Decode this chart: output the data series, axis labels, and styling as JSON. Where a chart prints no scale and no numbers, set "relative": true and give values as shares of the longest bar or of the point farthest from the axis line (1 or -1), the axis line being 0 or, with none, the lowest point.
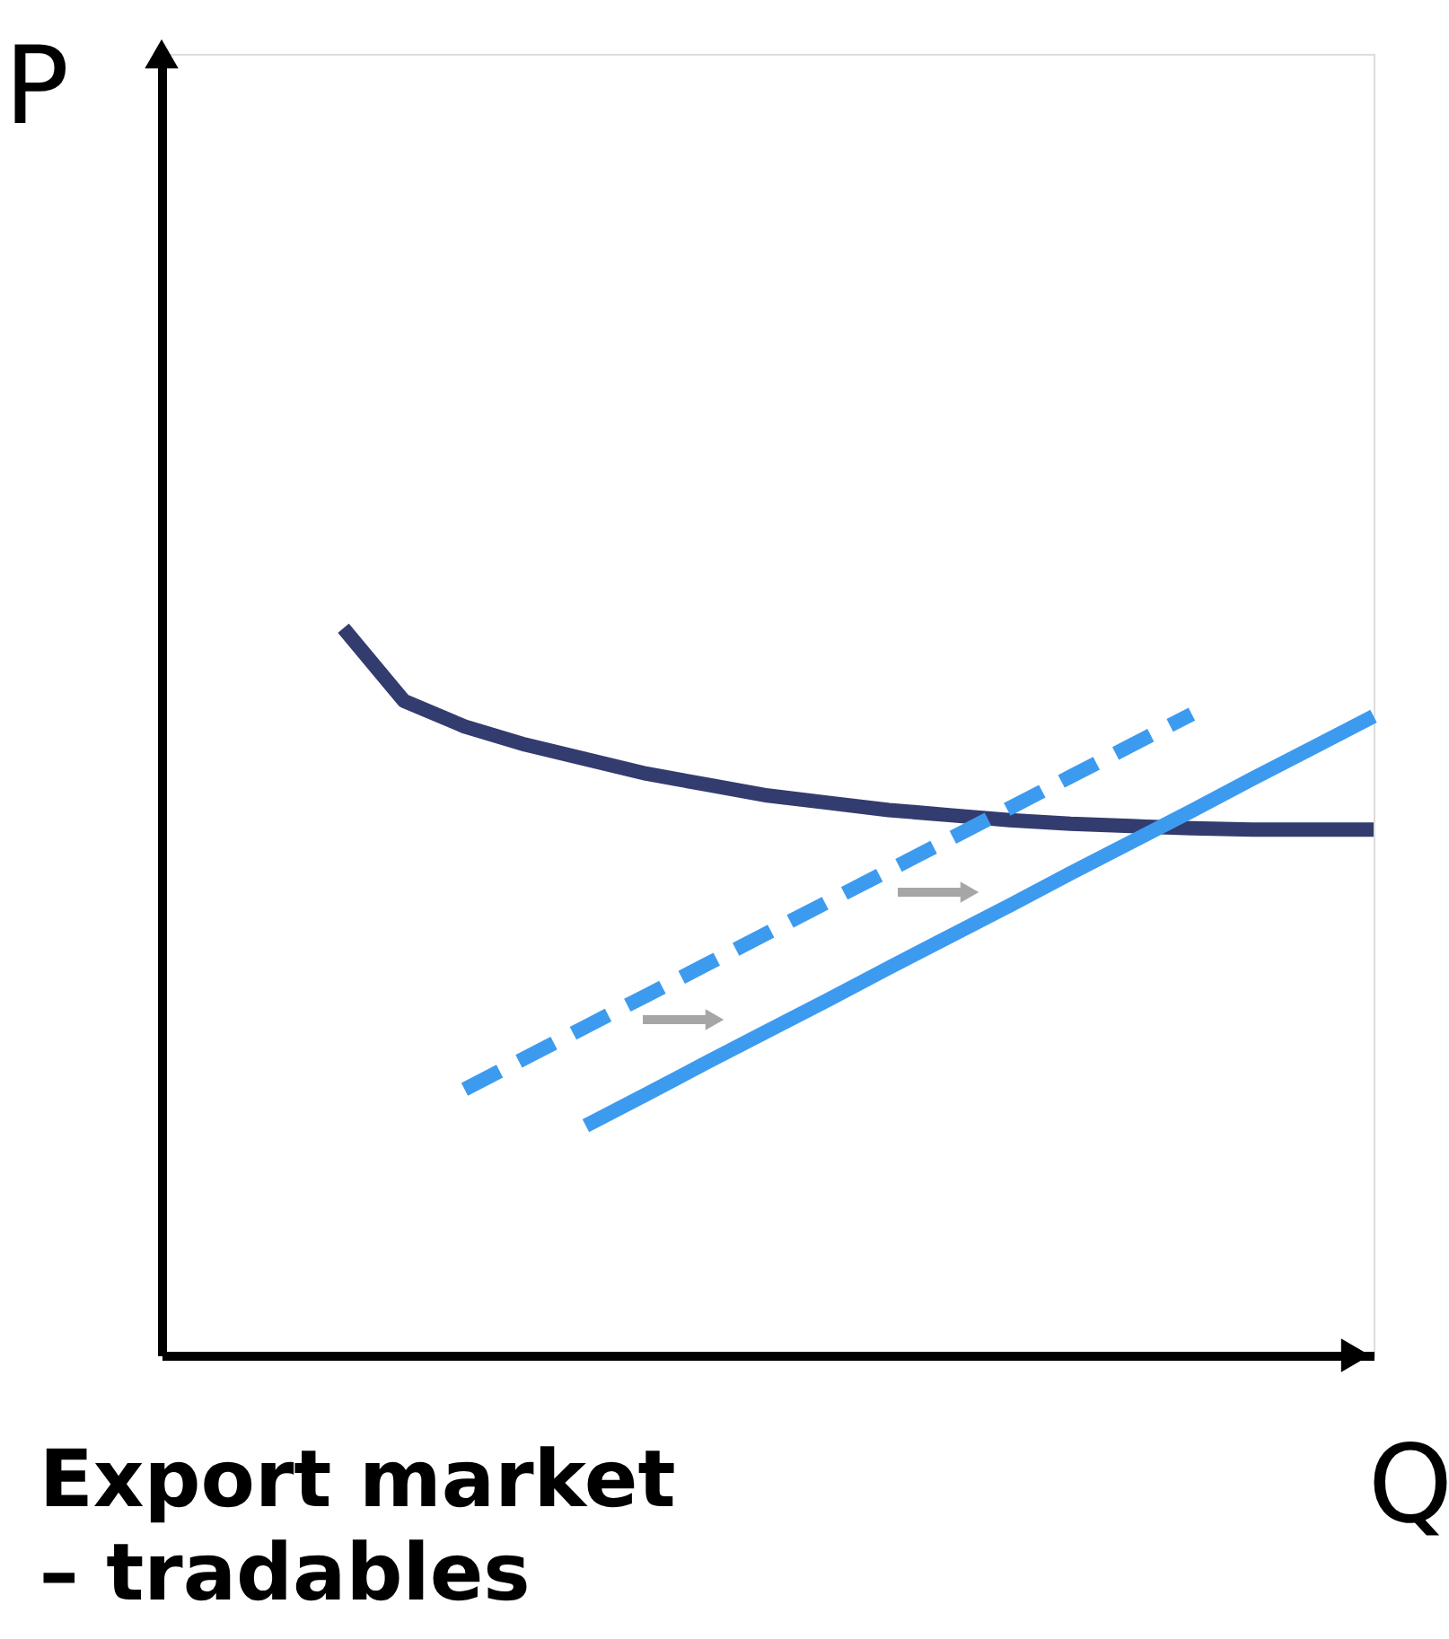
{
  "chart_data": {
    "type": "line",
    "title": "Export market – tradables",
    "xlabel": "Q",
    "ylabel": "P",
    "relative": true,
    "grid": false,
    "marker": "none",
    "categories": [
      null,
      null,
      null,
      null,
      null,
      null,
      null,
      null,
      null,
      null,
      null,
      null,
      null,
      null,
      null,
      null,
      null,
      null,
      null,
      null,
      null
    ],
    "series": [
      {
        "color": "#333c6e",
        "line_style": "solid",
        "values": [
          null,
          null,
          null,
          1.0,
          0.9,
          0.865,
          0.84,
          0.82,
          0.8,
          0.785,
          0.77,
          0.76,
          0.75,
          0.743,
          0.736,
          0.731,
          0.728,
          0.725,
          0.723,
          0.723,
          0.723
        ]
      },
      {
        "color": "#3d9bef",
        "line_style": "dashed",
        "values": [
          null,
          null,
          null,
          null,
          null,
          0.366,
          0.409,
          0.452,
          0.495,
          0.538,
          0.581,
          0.624,
          0.667,
          0.71,
          0.753,
          0.796,
          0.839,
          0.882,
          null,
          null,
          null
        ]
      },
      {
        "color": "#3d9bef",
        "line_style": "solid",
        "values": [
          null,
          null,
          null,
          null,
          null,
          null,
          null,
          0.316,
          0.359,
          0.403,
          0.446,
          0.489,
          0.533,
          0.576,
          0.619,
          0.663,
          0.706,
          0.749,
          0.793,
          0.836,
          0.879
        ]
      }
    ]
  }
}
